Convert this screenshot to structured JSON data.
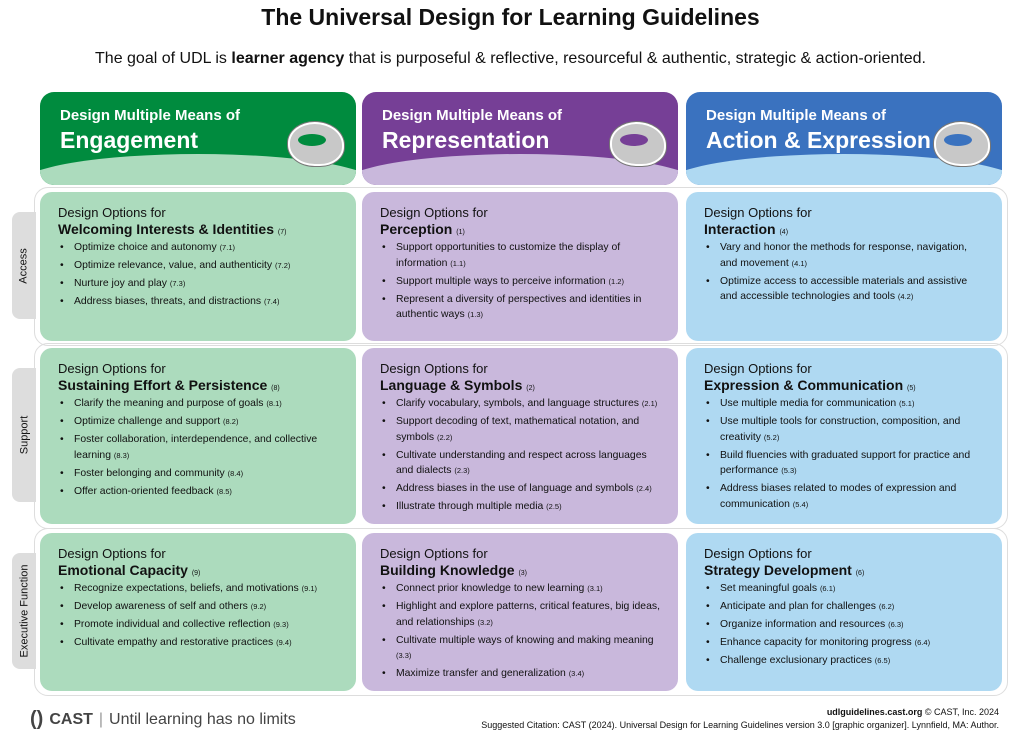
{
  "title": "The Universal Design for Learning Guidelines",
  "goal": {
    "pre": "The goal of UDL is ",
    "bold": "learner agency",
    "post": " that is purposeful & reflective, resourceful & authentic, strategic & action-oriented."
  },
  "colors": {
    "engagement": "#008b3e",
    "engagement_light": "#acdbbd",
    "representation": "#763f96",
    "representation_light": "#c9b8dc",
    "action": "#3a72bf",
    "action_light": "#afd9f2"
  },
  "columns": [
    {
      "pre": "Design Multiple Means of",
      "title": "Engagement",
      "icon": "brain-icon"
    },
    {
      "pre": "Design Multiple Means of",
      "title": "Representation",
      "icon": "brain-icon"
    },
    {
      "pre": "Design Multiple Means of",
      "title": "Action & Expression",
      "icon": "brain-icon"
    }
  ],
  "rows": [
    {
      "label": "Access",
      "cells": [
        {
          "pre": "Design Options for",
          "title": "Welcoming Interests & Identities",
          "num": "(7)",
          "items": [
            [
              "Optimize choice and autonomy",
              "(7.1)"
            ],
            [
              "Optimize relevance, value, and authenticity",
              "(7.2)"
            ],
            [
              "Nurture joy and play",
              "(7.3)"
            ],
            [
              "Address biases, threats, and distractions",
              "(7.4)"
            ]
          ]
        },
        {
          "pre": "Design Options for",
          "title": "Perception",
          "num": "(1)",
          "items": [
            [
              "Support opportunities to customize the display of information",
              "(1.1)"
            ],
            [
              "Support multiple ways to perceive information",
              "(1.2)"
            ],
            [
              "Represent a diversity of perspectives and identities in authentic ways",
              "(1.3)"
            ]
          ]
        },
        {
          "pre": "Design Options for",
          "title": "Interaction",
          "num": "(4)",
          "items": [
            [
              "Vary and honor the methods for response, navigation, and movement",
              "(4.1)"
            ],
            [
              "Optimize access to accessible materials and assistive and accessible technologies and tools",
              "(4.2)"
            ]
          ]
        }
      ]
    },
    {
      "label": "Support",
      "cells": [
        {
          "pre": "Design Options for",
          "title": "Sustaining Effort & Persistence",
          "num": "(8)",
          "items": [
            [
              "Clarify the meaning and purpose of goals",
              "(8.1)"
            ],
            [
              "Optimize challenge and support",
              "(8.2)"
            ],
            [
              "Foster collaboration, interdependence, and collective learning",
              "(8.3)"
            ],
            [
              "Foster belonging and community",
              "(8.4)"
            ],
            [
              "Offer action-oriented feedback",
              "(8.5)"
            ]
          ]
        },
        {
          "pre": "Design Options for",
          "title": "Language & Symbols",
          "num": "(2)",
          "items": [
            [
              "Clarify vocabulary, symbols, and language structures",
              "(2.1)"
            ],
            [
              "Support decoding of text, mathematical notation, and symbols",
              "(2.2)"
            ],
            [
              "Cultivate understanding and respect across languages and dialects",
              "(2.3)"
            ],
            [
              "Address biases in the use of language and symbols",
              "(2.4)"
            ],
            [
              "Illustrate through multiple media",
              "(2.5)"
            ]
          ]
        },
        {
          "pre": "Design Options for",
          "title": "Expression & Communication",
          "num": "(5)",
          "items": [
            [
              "Use multiple media for communication",
              "(5.1)"
            ],
            [
              "Use multiple tools for construction, composition, and creativity",
              "(5.2)"
            ],
            [
              "Build fluencies with graduated support for practice and performance",
              "(5.3)"
            ],
            [
              "Address biases related to modes of expression and communication",
              "(5.4)"
            ]
          ]
        }
      ]
    },
    {
      "label": "Executive Function",
      "cells": [
        {
          "pre": "Design Options for",
          "title": "Emotional Capacity",
          "num": "(9)",
          "items": [
            [
              "Recognize expectations, beliefs, and motivations",
              "(9.1)"
            ],
            [
              "Develop awareness of self and others",
              "(9.2)"
            ],
            [
              "Promote individual and collective reflection",
              "(9.3)"
            ],
            [
              "Cultivate empathy and restorative practices",
              "(9.4)"
            ]
          ]
        },
        {
          "pre": "Design Options for",
          "title": "Building Knowledge",
          "num": "(3)",
          "items": [
            [
              "Connect prior knowledge to new learning",
              "(3.1)"
            ],
            [
              "Highlight and explore patterns, critical features, big ideas, and relationships",
              "(3.2)"
            ],
            [
              "Cultivate multiple ways of knowing and making meaning",
              "(3.3)"
            ],
            [
              "Maximize transfer and generalization",
              "(3.4)"
            ]
          ]
        },
        {
          "pre": "Design Options for",
          "title": "Strategy Development",
          "num": "(6)",
          "items": [
            [
              "Set meaningful goals",
              "(6.1)"
            ],
            [
              "Anticipate and plan for challenges",
              "(6.2)"
            ],
            [
              "Organize information and resources",
              "(6.3)"
            ],
            [
              "Enhance capacity for monitoring progress",
              "(6.4)"
            ],
            [
              "Challenge exclusionary practices",
              "(6.5)"
            ]
          ]
        }
      ]
    }
  ],
  "footer": {
    "logo": "CAST",
    "tagline": "Until learning has no limits",
    "site": "udlguidelines.cast.org",
    "copyright": " © CAST, Inc. 2024",
    "citation": "Suggested Citation: CAST (2024). Universal Design for Learning Guidelines version 3.0 [graphic organizer]. Lynnfield, MA: Author."
  }
}
